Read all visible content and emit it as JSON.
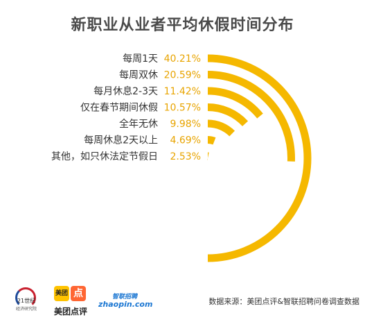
{
  "chart_data": {
    "type": "radial-bar",
    "title": "新职业从业者平均休假时间分布",
    "categories": [
      "每周1天",
      "每周双休",
      "每月休息2-3天",
      "仅在春节期间休假",
      "全年无休",
      "每周休息2天以上",
      "其他，如只休法定节假日"
    ],
    "values": [
      40.21,
      20.59,
      11.42,
      10.57,
      9.98,
      4.69,
      2.53
    ],
    "value_labels": [
      "40.21%",
      "20.59%",
      "11.42%",
      "10.57%",
      "9.98%",
      "4.69%",
      "2.53%"
    ],
    "unit": "%",
    "color": "#f5b800"
  },
  "logos": {
    "logo21_text": "21世纪",
    "logo21_sub": "经济研究院",
    "meituan_box": "美团",
    "dianping_box": "点",
    "meituan_name": "美团点评",
    "zhaopin_cn": "智联招聘",
    "zhaopin_en": "zhaopin.com"
  },
  "source": "数据来源：美团点评&智联招聘问卷调查数据"
}
